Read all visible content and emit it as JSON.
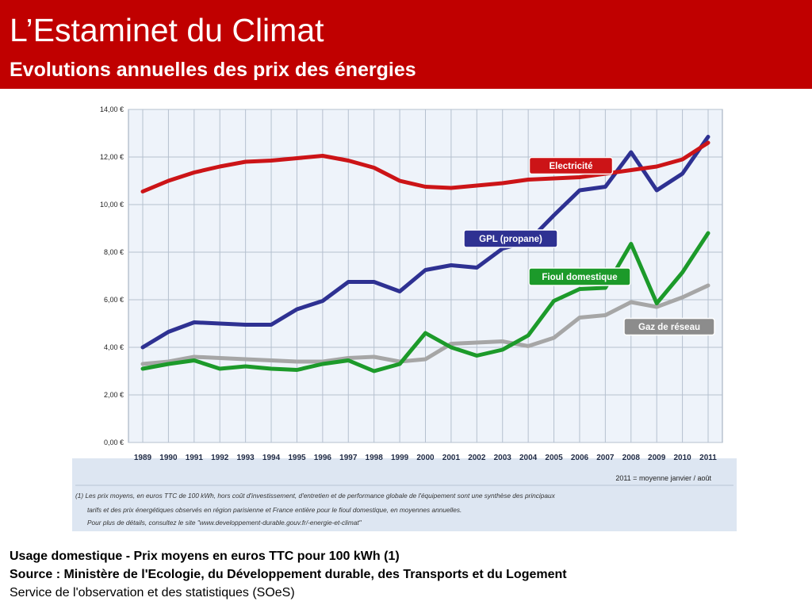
{
  "header": {
    "title": "L’Estaminet du Climat",
    "subtitle": "Evolutions annuelles des prix des énergies"
  },
  "colors": {
    "header_bg": "#c00000",
    "electricite": "#cc1417",
    "gpl": "#2e3192",
    "fioul": "#1c9a2a",
    "gaz": "#a6a6a6",
    "plot_bg": "#eef3fa"
  },
  "chart_data": {
    "type": "line",
    "title": "",
    "xlabel": "",
    "ylabel": "",
    "ylim": [
      0,
      14
    ],
    "yticks": [
      0,
      2,
      4,
      6,
      8,
      10,
      12,
      14
    ],
    "ytick_labels": [
      "0,00 €",
      "2,00 €",
      "4,00 €",
      "6,00 €",
      "8,00 €",
      "10,00 €",
      "12,00 €",
      "14,00 €"
    ],
    "categories": [
      "1989",
      "1990",
      "1991",
      "1992",
      "1993",
      "1994",
      "1995",
      "1996",
      "1997",
      "1998",
      "1999",
      "2000",
      "2001",
      "2002",
      "2003",
      "2004",
      "2005",
      "2006",
      "2007",
      "2008",
      "2009",
      "2010",
      "2011"
    ],
    "grid": true,
    "series": [
      {
        "name": "Electricité",
        "color": "#cc1417",
        "values": [
          10.55,
          11.0,
          11.35,
          11.6,
          11.8,
          11.85,
          11.95,
          12.05,
          11.85,
          11.55,
          11.0,
          10.75,
          10.7,
          10.8,
          10.9,
          11.05,
          11.1,
          11.15,
          11.3,
          11.45,
          11.6,
          11.9,
          12.6
        ]
      },
      {
        "name": "GPL (propane)",
        "color": "#2e3192",
        "values": [
          4.0,
          4.65,
          5.05,
          5.0,
          4.95,
          4.95,
          5.6,
          5.95,
          6.75,
          6.75,
          6.35,
          7.25,
          7.45,
          7.35,
          8.15,
          8.45,
          9.55,
          10.6,
          10.75,
          12.2,
          10.6,
          11.3,
          12.85
        ]
      },
      {
        "name": "Fioul domestique",
        "color": "#1c9a2a",
        "values": [
          3.1,
          3.3,
          3.45,
          3.1,
          3.2,
          3.1,
          3.05,
          3.3,
          3.45,
          3.0,
          3.3,
          4.6,
          4.0,
          3.65,
          3.9,
          4.5,
          5.95,
          6.45,
          6.5,
          8.35,
          5.85,
          7.15,
          8.8
        ]
      },
      {
        "name": "Gaz de réseau",
        "color": "#a6a6a6",
        "values": [
          3.3,
          3.4,
          3.6,
          3.55,
          3.5,
          3.45,
          3.4,
          3.4,
          3.55,
          3.6,
          3.4,
          3.5,
          4.15,
          4.2,
          4.25,
          4.05,
          4.4,
          5.25,
          5.35,
          5.9,
          5.7,
          6.1,
          6.6
        ]
      }
    ],
    "annotations": [
      {
        "text": "Electricité",
        "series": "Electricité",
        "bg": "#cc1417"
      },
      {
        "text": "GPL (propane)",
        "series": "GPL (propane)",
        "bg": "#2e3192"
      },
      {
        "text": "Fioul domestique",
        "series": "Fioul domestique",
        "bg": "#1c9a2a"
      },
      {
        "text": "Gaz de réseau",
        "series": "Gaz de réseau",
        "bg": "#8c8c8c"
      }
    ],
    "note_period": "2011 =  moyenne  janvier  / août",
    "footnotes": [
      "(1)  Les prix moyens, en euros TTC de 100 kWh, hors coût d'investissement, d'entretien et de performance globale de l'équipement sont une synthèse des principaux",
      "tarifs et des prix énergétiques observés en région parisienne et France entière pour le fioul domestique, en moyennes annuelles.",
      "Pour plus de détails, consultez le site \"www.developpement-durable.gouv.fr/-energie-et-climat\""
    ]
  },
  "caption": {
    "line1": "Usage domestique - Prix moyens en euros TTC pour 100 kWh (1)",
    "line2": "Source : Ministère de l'Ecologie, du Développement durable, des Transports et du Logement",
    "line3": "Service de l'observation et des statistiques (SOeS)"
  }
}
